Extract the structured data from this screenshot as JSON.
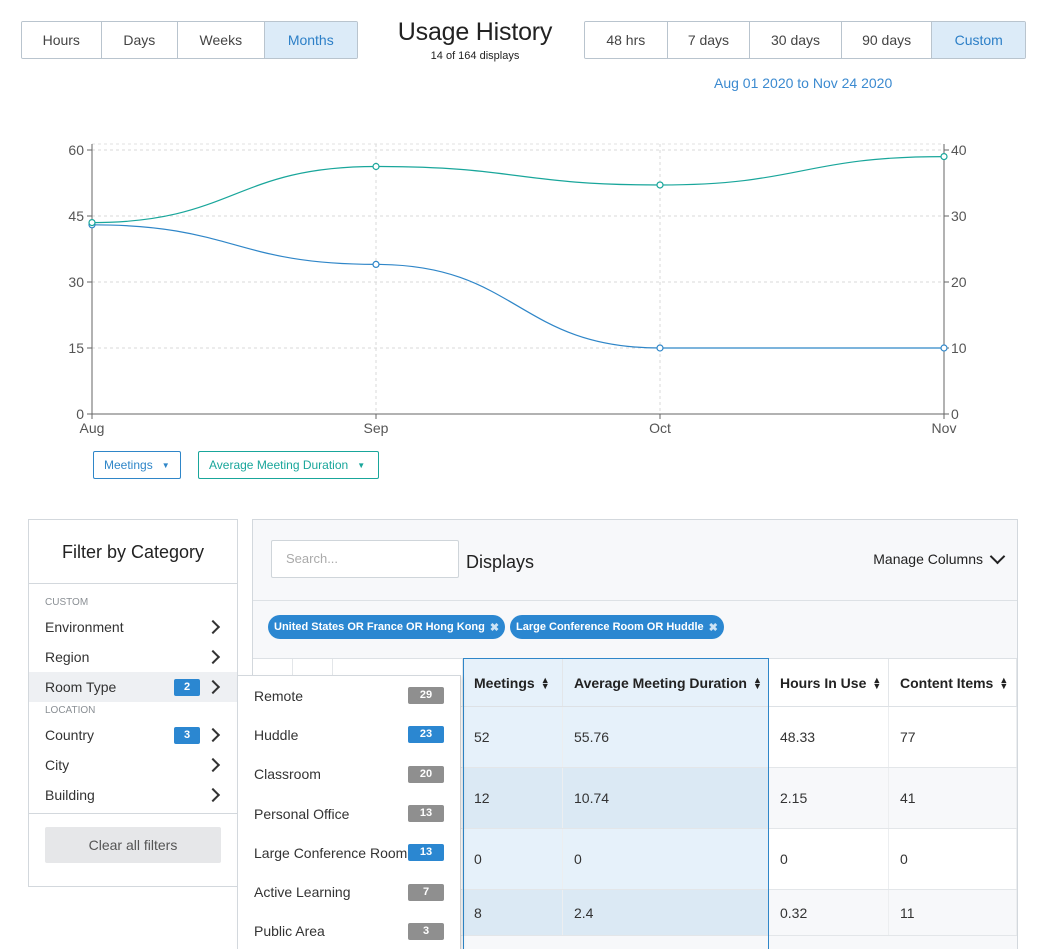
{
  "header": {
    "time_unit_buttons": [
      {
        "label": "Hours",
        "active": false
      },
      {
        "label": "Days",
        "active": false
      },
      {
        "label": "Weeks",
        "active": false
      },
      {
        "label": "Months",
        "active": true
      }
    ],
    "title": "Usage History",
    "subtitle": "14 of 164 displays",
    "range_buttons": [
      {
        "label": "48 hrs",
        "active": false
      },
      {
        "label": "7 days",
        "active": false
      },
      {
        "label": "30 days",
        "active": false
      },
      {
        "label": "90 days",
        "active": false
      },
      {
        "label": "Custom",
        "active": true
      }
    ],
    "date_range": "Aug 01 2020 to Nov 24 2020"
  },
  "chart_data": {
    "type": "line",
    "categories": [
      "Aug",
      "Sep",
      "Oct",
      "Nov"
    ],
    "series": [
      {
        "name": "Meetings",
        "axis": "left",
        "color": "#2f86c8",
        "values": [
          43,
          34,
          15,
          15
        ]
      },
      {
        "name": "Average Meeting Duration",
        "axis": "right",
        "color": "#19a69b",
        "values": [
          29,
          37.5,
          34.7,
          39
        ]
      }
    ],
    "yleft": {
      "ticks": [
        0,
        15,
        30,
        45,
        60
      ],
      "lim": [
        0,
        60
      ]
    },
    "yright": {
      "ticks": [
        0,
        10,
        20,
        30,
        40
      ],
      "lim": [
        0,
        40
      ]
    },
    "grid": true
  },
  "series_selectors": {
    "left_label": "Meetings",
    "right_label": "Average Meeting Duration"
  },
  "filter": {
    "title": "Filter by Category",
    "section_custom": "CUSTOM",
    "section_location": "LOCATION",
    "custom_items": [
      {
        "label": "Environment",
        "count": null
      },
      {
        "label": "Region",
        "count": null
      },
      {
        "label": "Room Type",
        "count": "2"
      }
    ],
    "location_items": [
      {
        "label": "Country",
        "count": "3"
      },
      {
        "label": "City",
        "count": null
      },
      {
        "label": "Building",
        "count": null
      }
    ],
    "clear_label": "Clear all filters"
  },
  "room_type_options": [
    {
      "label": "Remote",
      "count": "29",
      "selected": false
    },
    {
      "label": "Huddle",
      "count": "23",
      "selected": true
    },
    {
      "label": "Classroom",
      "count": "20",
      "selected": false
    },
    {
      "label": "Personal Office",
      "count": "13",
      "selected": false
    },
    {
      "label": "Large Conference Room",
      "count": "13",
      "selected": true
    },
    {
      "label": "Active Learning",
      "count": "7",
      "selected": false
    },
    {
      "label": "Public Area",
      "count": "3",
      "selected": false
    }
  ],
  "displays": {
    "search_placeholder": "Search...",
    "title": "Displays",
    "manage_columns": "Manage Columns",
    "tags": [
      "United States OR France OR Hong Kong",
      "Large Conference Room OR Huddle"
    ],
    "columns": [
      "Meetings",
      "Average Meeting Duration",
      "Hours In Use",
      "Content Items"
    ],
    "rows": [
      [
        "52",
        "55.76",
        "48.33",
        "77"
      ],
      [
        "12",
        "10.74",
        "2.15",
        "41"
      ],
      [
        "0",
        "0",
        "0",
        "0"
      ],
      [
        "8",
        "2.4",
        "0.32",
        "11"
      ]
    ]
  },
  "colors": {
    "accent": "#2b87d1",
    "meetings_line": "#2f86c8",
    "duration_line": "#19a69b",
    "active_button_bg": "#dcebf8"
  }
}
